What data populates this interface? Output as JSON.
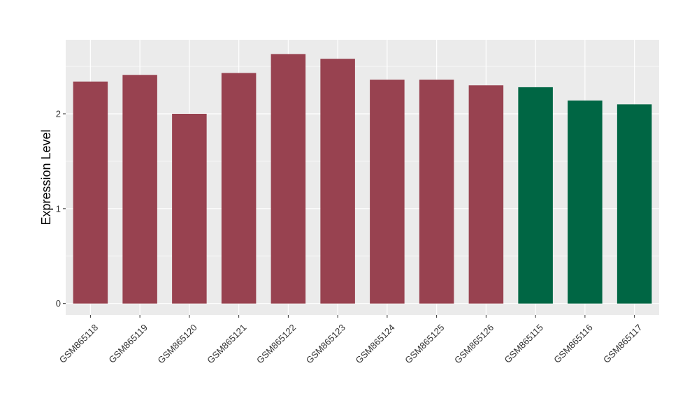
{
  "chart_data": {
    "type": "bar",
    "ylabel": "Expression Level",
    "xlabel": "",
    "categories": [
      "GSM865118",
      "GSM865119",
      "GSM865120",
      "GSM865121",
      "GSM865122",
      "GSM865123",
      "GSM865124",
      "GSM865125",
      "GSM865126",
      "GSM865115",
      "GSM865116",
      "GSM865117"
    ],
    "values": [
      2.34,
      2.41,
      2.0,
      2.43,
      2.63,
      2.58,
      2.36,
      2.36,
      2.3,
      2.28,
      2.14,
      2.1
    ],
    "bar_colors": [
      "#984250",
      "#984250",
      "#984250",
      "#984250",
      "#984250",
      "#984250",
      "#984250",
      "#984250",
      "#984250",
      "#006644",
      "#006644",
      "#006644"
    ],
    "ylim": [
      -0.12,
      2.78
    ],
    "yticks": [
      0,
      1,
      2
    ],
    "grid": true,
    "panel_background": "#EBEBEB",
    "grid_color": "#FFFFFF"
  }
}
